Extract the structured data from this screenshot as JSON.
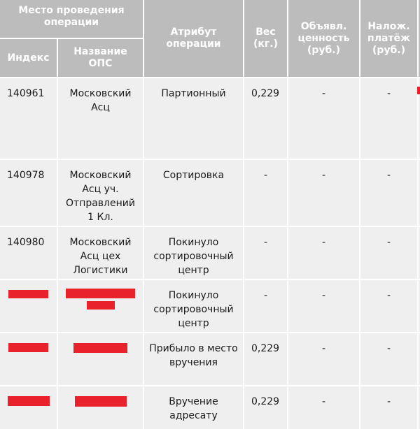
{
  "header": {
    "group_label": "Место проведения операции",
    "index_label": "Индекс",
    "ops_name_label": "Название ОПС",
    "attribute_label": "Атрибут операции",
    "weight_label": "Вес (кг.)",
    "declared_value_label": "Объявл. ценность (руб.)",
    "cod_label": "Налож. платёж (руб.)"
  },
  "rows": [
    {
      "index": "140961",
      "name": "Московский Асц",
      "attribute": "Партионный",
      "weight": "0,229",
      "declared": "-",
      "cod": "-"
    },
    {
      "index": "140978",
      "name": "Московский Асц уч. Отправлений 1 Кл.",
      "attribute": "Сортировка",
      "weight": "-",
      "declared": "-",
      "cod": "-"
    },
    {
      "index": "140980",
      "name": "Московский Асц цех Логистики",
      "attribute": "Покинуло сортировочный центр",
      "weight": "-",
      "declared": "-",
      "cod": "-"
    },
    {
      "index": "",
      "name": "",
      "attribute": "Покинуло сортировочный центр",
      "weight": "-",
      "declared": "-",
      "cod": "-"
    },
    {
      "index": "",
      "name": "",
      "attribute": "Прибыло в место вручения",
      "weight": "0,229",
      "declared": "-",
      "cod": "-"
    },
    {
      "index": "",
      "name": "",
      "attribute": "Вручение адресату",
      "weight": "0,229",
      "declared": "-",
      "cod": "-"
    }
  ],
  "colors": {
    "header_bg": "#bcbcbc",
    "row_bg": "#efefef",
    "redaction": "#e8212b"
  }
}
